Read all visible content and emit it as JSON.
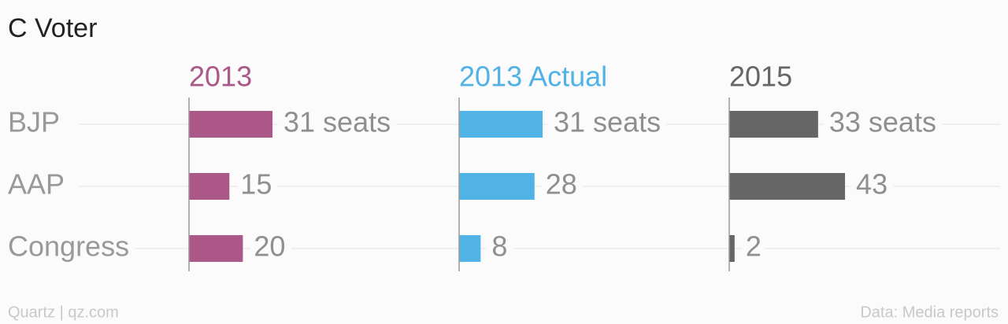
{
  "title": "C Voter",
  "footer": {
    "source": "Quartz | qz.com",
    "note": "Data: Media reports"
  },
  "chart_data": [
    {
      "type": "bar",
      "orientation": "horizontal",
      "title": "2013",
      "categories": [
        "BJP",
        "AAP",
        "Congress"
      ],
      "values": [
        31,
        15,
        20
      ],
      "value_labels": [
        "31 seats",
        "15",
        "20"
      ],
      "color": "#ab5787",
      "xlim": [
        0,
        100
      ]
    },
    {
      "type": "bar",
      "orientation": "horizontal",
      "title": "2013 Actual",
      "values": [
        31,
        28,
        8
      ],
      "value_labels": [
        "31 seats",
        "28",
        "8"
      ],
      "color": "#51b2e5",
      "xlim": [
        0,
        100
      ]
    },
    {
      "type": "bar",
      "orientation": "horizontal",
      "title": "2015",
      "values": [
        33,
        43,
        2
      ],
      "value_labels": [
        "33 seats",
        "43",
        "2"
      ],
      "color": "#666666",
      "xlim": [
        0,
        100
      ]
    }
  ]
}
